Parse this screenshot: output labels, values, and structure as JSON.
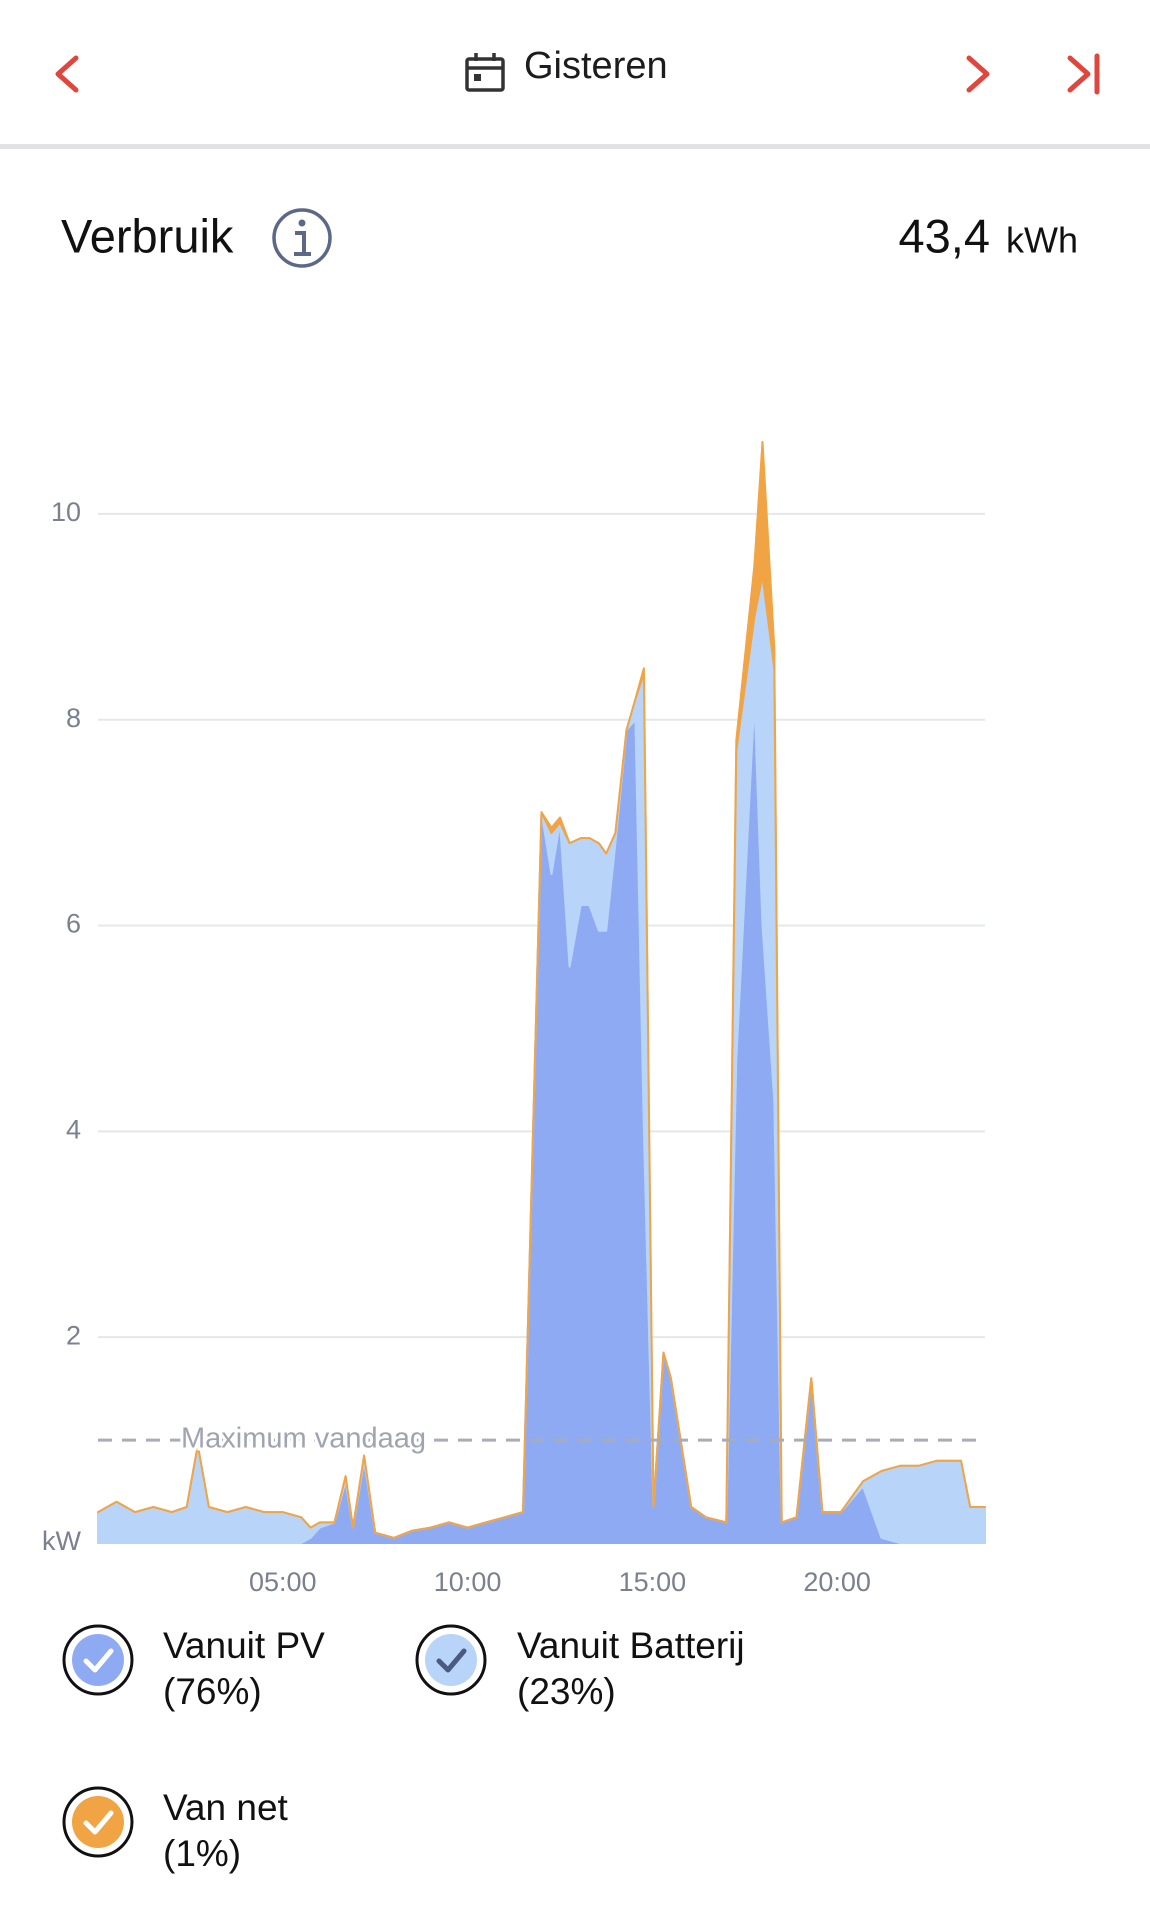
{
  "header": {
    "title": "Gisteren"
  },
  "summary": {
    "title": "Verbruik",
    "value": "43,4",
    "unit": "kWh"
  },
  "chart_data": {
    "type": "stacked-area",
    "x": [
      0,
      0.5,
      1,
      1.5,
      2,
      2.4,
      2.7,
      3.0,
      3.5,
      4,
      4.5,
      5,
      5.5,
      5.75,
      6.0,
      6.4,
      6.7,
      6.9,
      7.2,
      7.5,
      8,
      8.5,
      9,
      9.5,
      10,
      10.5,
      11,
      11.5,
      12.0,
      12.27,
      12.5,
      12.76,
      13.06,
      13.3,
      13.55,
      13.75,
      14.0,
      14.3,
      14.54,
      14.77,
      15.03,
      15.3,
      15.5,
      16.05,
      16.45,
      17.0,
      17.27,
      17.76,
      17.98,
      18.3,
      18.5,
      18.9,
      19.3,
      19.6,
      20.1,
      20.7,
      21.2,
      21.7,
      22.2,
      22.7,
      23.35,
      23.6,
      24
    ],
    "series": [
      {
        "name": "Vanuit PV",
        "share": "(76%)",
        "color": "#8eaaf3",
        "values": [
          0,
          0,
          0,
          0,
          0,
          0,
          0,
          0,
          0,
          0,
          0,
          0,
          0,
          0.05,
          0.15,
          0.2,
          0.6,
          0.15,
          0.8,
          0.1,
          0.05,
          0.12,
          0.15,
          0.2,
          0.15,
          0.2,
          0.25,
          0.3,
          7.1,
          6.5,
          7.0,
          5.6,
          6.2,
          6.2,
          5.95,
          5.95,
          6.8,
          7.9,
          8.0,
          4.0,
          0.35,
          1.85,
          1.6,
          0.35,
          0.25,
          0.2,
          4.7,
          8.2,
          6.0,
          4.3,
          0.2,
          0.25,
          1.6,
          0.3,
          0.3,
          0.55,
          0.05,
          0,
          0,
          0,
          0,
          0,
          0
        ]
      },
      {
        "name": "Vanuit Batterij",
        "share": "(23%)",
        "color": "#b8d4f8",
        "values": [
          0.3,
          0.4,
          0.3,
          0.35,
          0.3,
          0.35,
          0.95,
          0.35,
          0.3,
          0.35,
          0.3,
          0.3,
          0.25,
          0.1,
          0.05,
          0,
          0.05,
          0,
          0.05,
          0,
          0,
          0,
          0,
          0,
          0,
          0,
          0,
          0,
          0,
          0.4,
          0,
          1.2,
          0.65,
          0.65,
          0.85,
          0.75,
          0.1,
          0,
          0.2,
          4.45,
          0,
          0,
          0,
          0,
          0,
          0,
          3.0,
          0.8,
          3.4,
          4.2,
          0,
          0,
          0,
          0,
          0,
          0.05,
          0.65,
          0.75,
          0.75,
          0.8,
          0.8,
          0.35,
          0.35
        ]
      },
      {
        "name": "Van net",
        "share": "(1%)",
        "color": "#f0a444",
        "values": [
          0,
          0,
          0,
          0,
          0,
          0,
          0,
          0,
          0,
          0,
          0,
          0,
          0,
          0,
          0,
          0,
          0,
          0,
          0,
          0,
          0,
          0,
          0,
          0,
          0,
          0,
          0,
          0,
          0,
          0.05,
          0.05,
          0,
          0,
          0,
          0,
          0,
          0,
          0,
          0,
          0.05,
          0,
          0,
          0,
          0,
          0,
          0,
          0.1,
          0.5,
          1.3,
          0.2,
          0,
          0,
          0,
          0,
          0,
          0,
          0,
          0,
          0,
          0,
          0,
          0,
          0
        ]
      }
    ],
    "xlim": [
      0,
      24
    ],
    "xticks": [
      {
        "value": 5,
        "label": "05:00"
      },
      {
        "value": 10,
        "label": "10:00"
      },
      {
        "value": 15,
        "label": "15:00"
      },
      {
        "value": 20,
        "label": "20:00"
      }
    ],
    "ylim": [
      0,
      11
    ],
    "yticks": [
      {
        "value": 0,
        "label": "kW"
      },
      2,
      4,
      6,
      8,
      10
    ],
    "grid": true,
    "reference_line": {
      "label": "Maximum vandaag",
      "value": 1.0
    }
  }
}
